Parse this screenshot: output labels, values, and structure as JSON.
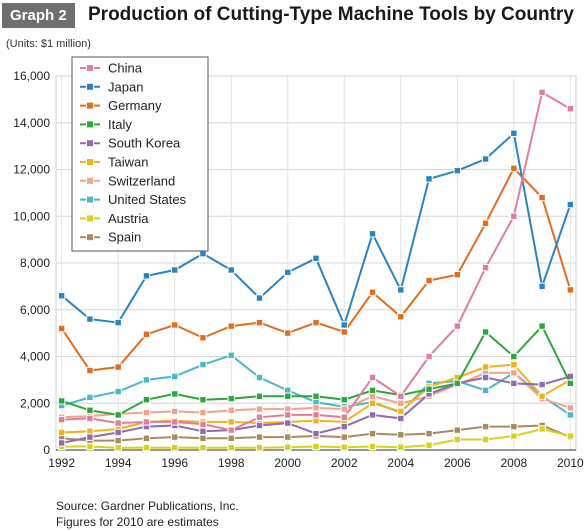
{
  "header": {
    "badge": "Graph 2",
    "title": "Production of Cutting-Type Machine Tools by Country"
  },
  "units_note": "(Units: $1 million)",
  "footer": {
    "source": "Source: Gardner Publications, Inc.",
    "note": "Figures for 2010 are estimates"
  },
  "chart_data": {
    "type": "line",
    "title": "Production of Cutting-Type Machine Tools by Country",
    "ylabel": "(Units: $1 million)",
    "xlabel": "",
    "x": [
      1992,
      1993,
      1994,
      1995,
      1996,
      1997,
      1998,
      1999,
      2000,
      2001,
      2002,
      2003,
      2004,
      2005,
      2006,
      2007,
      2008,
      2009,
      2010
    ],
    "x_tick_labels": [
      "1992",
      "1994",
      "1996",
      "1998",
      "2000",
      "2002",
      "2004",
      "2006",
      "2008",
      "2010"
    ],
    "x_tick_values": [
      1992,
      1994,
      1996,
      1998,
      2000,
      2002,
      2004,
      2006,
      2008,
      2010
    ],
    "y_ticks": [
      0,
      2000,
      4000,
      6000,
      8000,
      10000,
      12000,
      14000,
      16000
    ],
    "y_tick_labels": [
      "0",
      "2,000",
      "4,000",
      "6,000",
      "8,000",
      "10,000",
      "12,000",
      "14,000",
      "16,000"
    ],
    "xlim": [
      1991.8,
      2010.2
    ],
    "ylim": [
      0,
      16000
    ],
    "grid": true,
    "legend_position": "top-left",
    "series": [
      {
        "name": "China",
        "color": "#e07f9a",
        "values": [
          1300,
          1350,
          1150,
          1200,
          1200,
          1100,
          850,
          1400,
          1500,
          1500,
          1400,
          3100,
          2300,
          4000,
          5300,
          7800,
          10000,
          15300,
          14600
        ]
      },
      {
        "name": "Japan",
        "color": "#2a84c1",
        "values": [
          6600,
          5600,
          5450,
          7450,
          7700,
          8400,
          7700,
          6500,
          7600,
          8200,
          5350,
          9250,
          6850,
          11600,
          11950,
          12450,
          13550,
          7000,
          10500
        ]
      },
      {
        "name": "Germany",
        "color": "#e36c1e",
        "values": [
          5200,
          3400,
          3550,
          4950,
          5350,
          4800,
          5300,
          5450,
          5000,
          5450,
          5050,
          6750,
          5700,
          7250,
          7500,
          9700,
          12050,
          10800,
          6850
        ]
      },
      {
        "name": "Italy",
        "color": "#2ea73a",
        "values": [
          2100,
          1700,
          1500,
          2150,
          2400,
          2150,
          2200,
          2300,
          2300,
          2300,
          2150,
          2550,
          2350,
          2600,
          2850,
          5050,
          4000,
          5300,
          2850
        ]
      },
      {
        "name": "South Korea",
        "color": "#8f6bb3",
        "values": [
          300,
          550,
          750,
          1000,
          1050,
          800,
          850,
          1050,
          1150,
          700,
          1000,
          1500,
          1350,
          2400,
          2850,
          3100,
          2850,
          2800,
          3150
        ]
      },
      {
        "name": "Taiwan",
        "color": "#f2b21a",
        "values": [
          750,
          800,
          900,
          1200,
          1250,
          1200,
          1200,
          1150,
          1200,
          1250,
          1200,
          2000,
          1650,
          2700,
          3100,
          3550,
          3650,
          2300,
          3000
        ]
      },
      {
        "name": "Switzerland",
        "color": "#f0a48c",
        "values": [
          1400,
          1450,
          1550,
          1600,
          1650,
          1600,
          1700,
          1750,
          1750,
          1800,
          1750,
          2300,
          2000,
          2300,
          2800,
          3300,
          3300,
          2200,
          1800
        ]
      },
      {
        "name": "United States",
        "color": "#49b8c9",
        "values": [
          1900,
          2250,
          2500,
          3000,
          3150,
          3650,
          4050,
          3100,
          2550,
          2050,
          1850,
          2050,
          1600,
          2850,
          2950,
          2550,
          3300,
          2300,
          1500
        ]
      },
      {
        "name": "Austria",
        "color": "#d7d31c",
        "values": [
          150,
          150,
          100,
          100,
          100,
          100,
          100,
          100,
          120,
          150,
          120,
          150,
          120,
          200,
          450,
          450,
          600,
          900,
          600
        ]
      },
      {
        "name": "Spain",
        "color": "#a68c5e",
        "values": [
          500,
          400,
          400,
          500,
          550,
          500,
          500,
          550,
          550,
          600,
          550,
          700,
          650,
          700,
          850,
          1000,
          1000,
          1050,
          550
        ]
      }
    ]
  }
}
